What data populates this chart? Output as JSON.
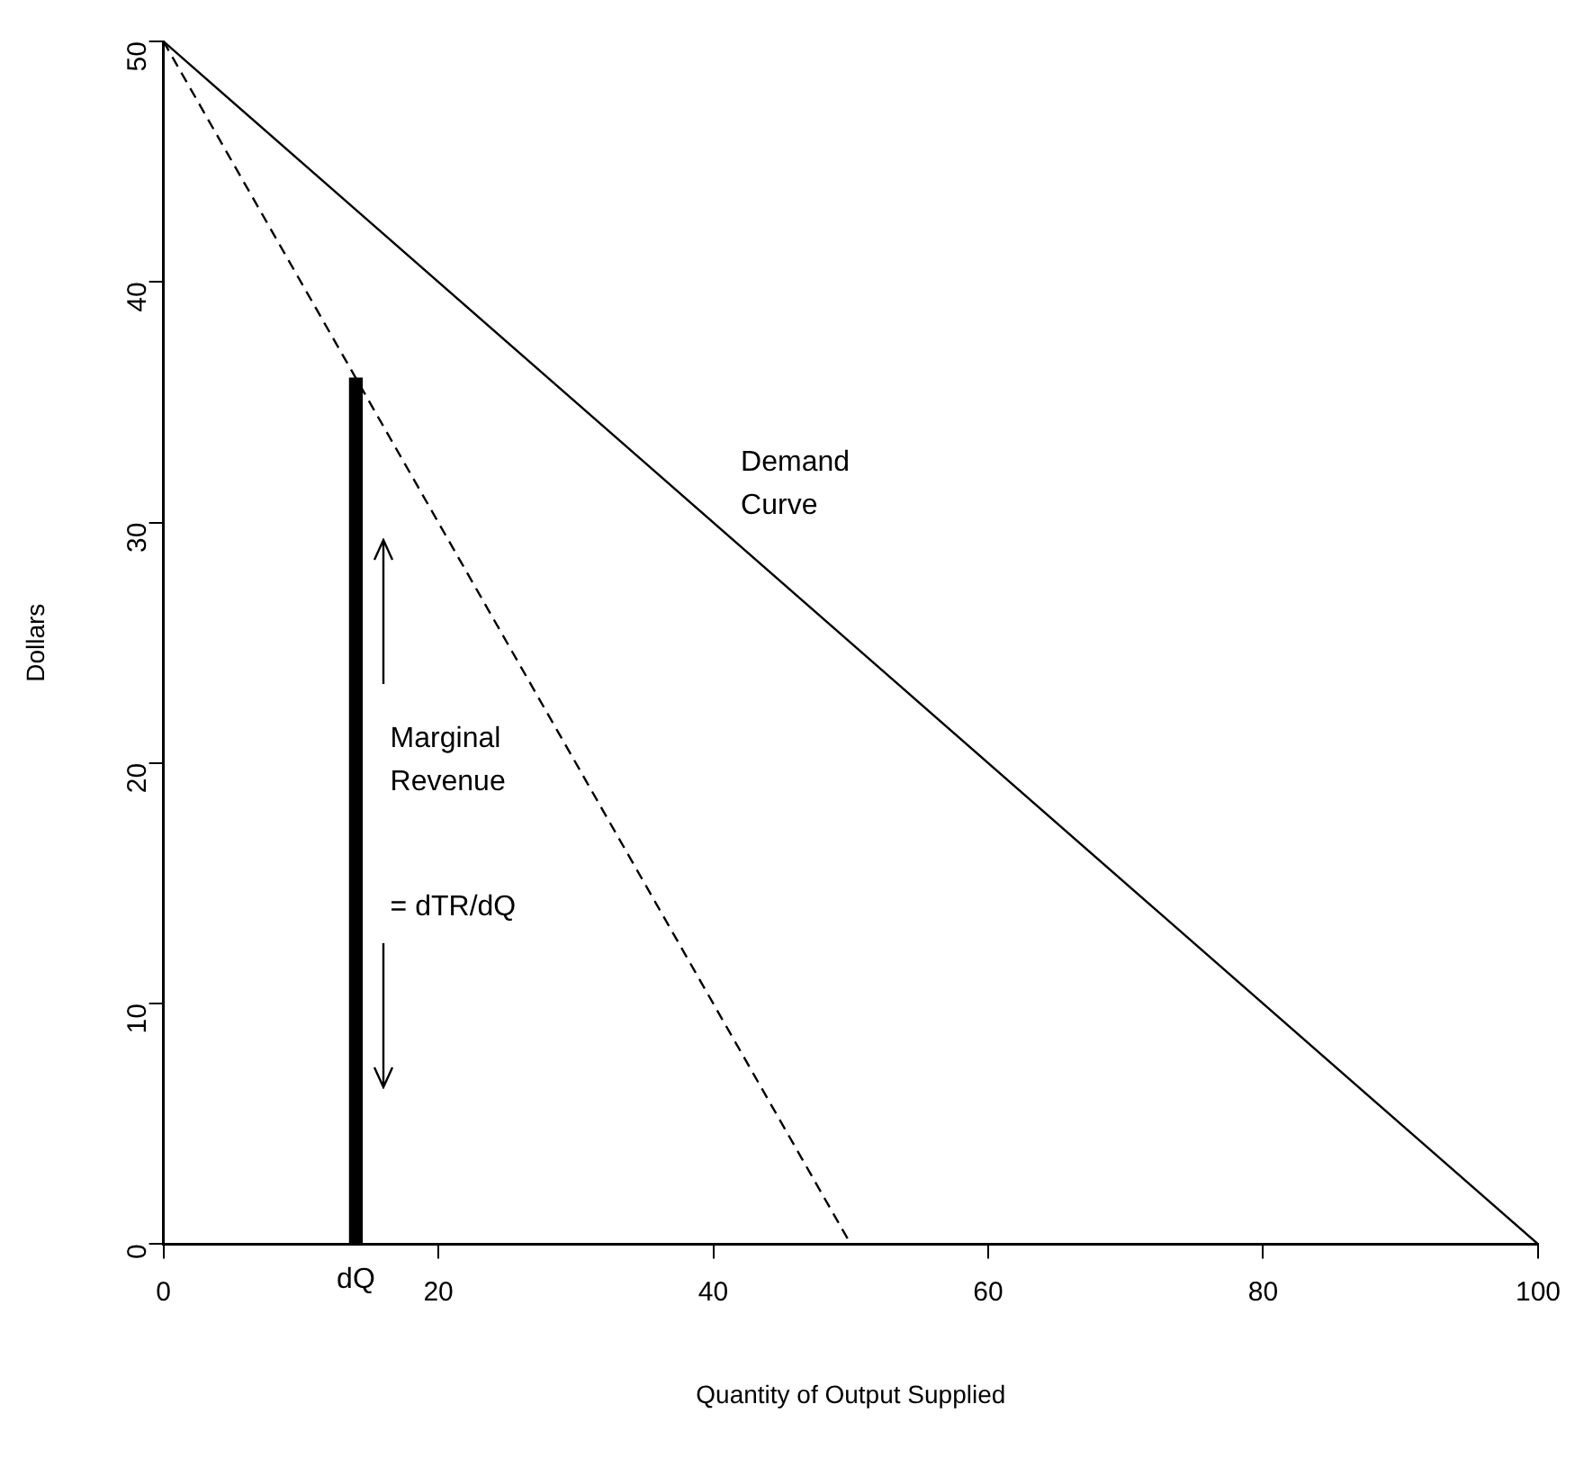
{
  "chart_data": {
    "type": "line",
    "xlabel": "Quantity of Output Supplied",
    "ylabel": "Dollars",
    "xlim": [
      0,
      100
    ],
    "xticks": [
      0,
      20,
      40,
      60,
      80,
      100
    ],
    "ylim": [
      0,
      50
    ],
    "yticks": [
      0,
      10,
      20,
      30,
      40,
      50
    ],
    "grid": false,
    "legend": false,
    "series": [
      {
        "x": [
          0,
          100
        ],
        "values": [
          50,
          0
        ],
        "color": "#000000",
        "line_style": "solid"
      },
      {
        "x": [
          0,
          50
        ],
        "values": [
          50,
          0
        ],
        "color": "#000000",
        "line_style": "dashed"
      },
      {
        "type": "bar",
        "x": [
          14
        ],
        "values": [
          36
        ],
        "color": "#000000"
      }
    ],
    "annotations": [
      "Demand Curve",
      "Marginal Revenue",
      "= dTR/dQ",
      {
        "text": "dQ",
        "x": 14,
        "y": 0
      }
    ]
  }
}
